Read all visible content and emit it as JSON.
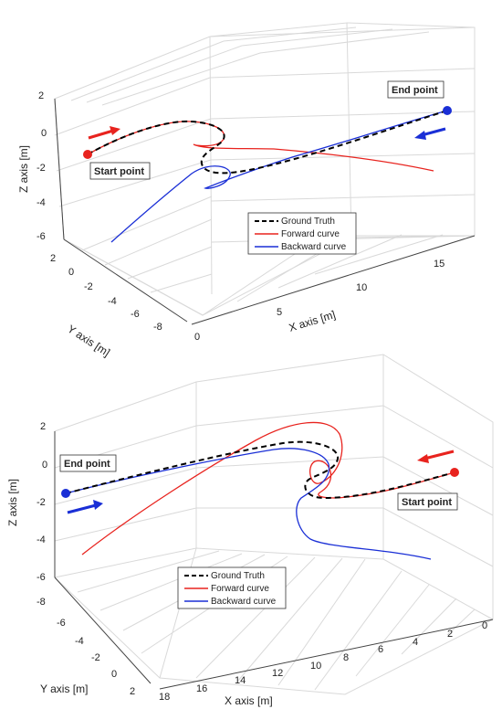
{
  "colors": {
    "ground_truth": "#000000",
    "forward": "#e8231e",
    "backward": "#1a2fd6",
    "start_marker": "#e8231e",
    "end_marker": "#1a2fd6",
    "grid": "#d9d9d9"
  },
  "chart_data": [
    {
      "type": "line",
      "dimension": "3d",
      "xlabel": "X axis [m]",
      "ylabel": "Y axis [m]",
      "zlabel": "Z axis [m]",
      "xlim": [
        0,
        18
      ],
      "ylim": [
        -9,
        3
      ],
      "zlim": [
        -6.5,
        2.5
      ],
      "x_ticks": [
        "0",
        "5",
        "10",
        "15"
      ],
      "y_ticks": [
        "2",
        "0",
        "-2",
        "-4",
        "-6",
        "-8"
      ],
      "z_ticks": [
        "2",
        "0",
        "-2",
        "-4",
        "-6"
      ],
      "grid": true,
      "legend_placement": "bottom-center",
      "legend": [
        "Ground Truth",
        "Forward curve",
        "Backward curve"
      ],
      "annotations": [
        {
          "text": "Start point",
          "color": "red",
          "arrow": "red"
        },
        {
          "text": "End point",
          "color": "blue",
          "arrow": "blue"
        }
      ],
      "series": [
        {
          "name": "Ground Truth",
          "style": "dashed",
          "points": [
            [
              0,
              1.5,
              -1.3
            ],
            [
              2,
              0.5,
              -0.8
            ],
            [
              4,
              -1,
              -0.6
            ],
            [
              5.5,
              -2.5,
              -0.2
            ],
            [
              6,
              -3.5,
              -0.8
            ],
            [
              5,
              -4,
              -1.4
            ],
            [
              4.5,
              -3.5,
              -1.8
            ],
            [
              5,
              -3.2,
              -2.0
            ],
            [
              7,
              -4,
              -1.8
            ],
            [
              10,
              -5,
              -1.3
            ],
            [
              13,
              -5.5,
              -0.5
            ],
            [
              16,
              -6,
              0.5
            ],
            [
              18,
              -6.5,
              1.3
            ]
          ]
        },
        {
          "name": "Forward curve",
          "style": "solid",
          "points": [
            [
              0,
              1.5,
              -1.3
            ],
            [
              2,
              0.5,
              -0.8
            ],
            [
              4,
              -1,
              -0.6
            ],
            [
              5.5,
              -2.5,
              -0.2
            ],
            [
              6,
              -3.5,
              -0.8
            ],
            [
              5.5,
              -4,
              -1.2
            ],
            [
              8,
              -4.5,
              -1.5
            ],
            [
              11,
              -5.5,
              -2.0
            ],
            [
              14,
              -6.5,
              -2.5
            ],
            [
              16,
              -7.5,
              -3.0
            ]
          ]
        },
        {
          "name": "Backward curve",
          "style": "solid",
          "points": [
            [
              -1,
              0,
              -6.0
            ],
            [
              2,
              -2,
              -4.5
            ],
            [
              4.5,
              -3.5,
              -2.5
            ],
            [
              5.5,
              -4,
              -1.9
            ],
            [
              5,
              -3.3,
              -2.6
            ],
            [
              7,
              -4,
              -2.0
            ],
            [
              10,
              -5,
              -1.3
            ],
            [
              13,
              -5.5,
              -0.5
            ],
            [
              16,
              -6,
              0.5
            ],
            [
              18,
              -6.5,
              1.3
            ]
          ]
        }
      ]
    },
    {
      "type": "line",
      "dimension": "3d",
      "xlabel": "X axis [m]",
      "ylabel": "Y axis [m]",
      "zlabel": "Z axis [m]",
      "xlim": [
        0,
        18
      ],
      "ylim": [
        -9,
        3
      ],
      "zlim": [
        -6.5,
        2.5
      ],
      "x_ticks": [
        "18",
        "16",
        "14",
        "12",
        "10",
        "8",
        "6",
        "4",
        "2",
        "0"
      ],
      "y_ticks": [
        "-8",
        "-6",
        "-4",
        "-2",
        "0",
        "2"
      ],
      "z_ticks": [
        "2",
        "0",
        "-2",
        "-4",
        "-6"
      ],
      "grid": true,
      "legend_placement": "bottom-center",
      "legend": [
        "Ground Truth",
        "Forward curve",
        "Backward curve"
      ],
      "annotations": [
        {
          "text": "End point",
          "color": "blue",
          "arrow": "blue"
        },
        {
          "text": "Start point",
          "color": "red",
          "arrow": "red"
        }
      ],
      "series": [
        {
          "name": "Ground Truth",
          "style": "dashed"
        },
        {
          "name": "Forward curve",
          "style": "solid"
        },
        {
          "name": "Backward curve",
          "style": "solid"
        }
      ]
    }
  ]
}
